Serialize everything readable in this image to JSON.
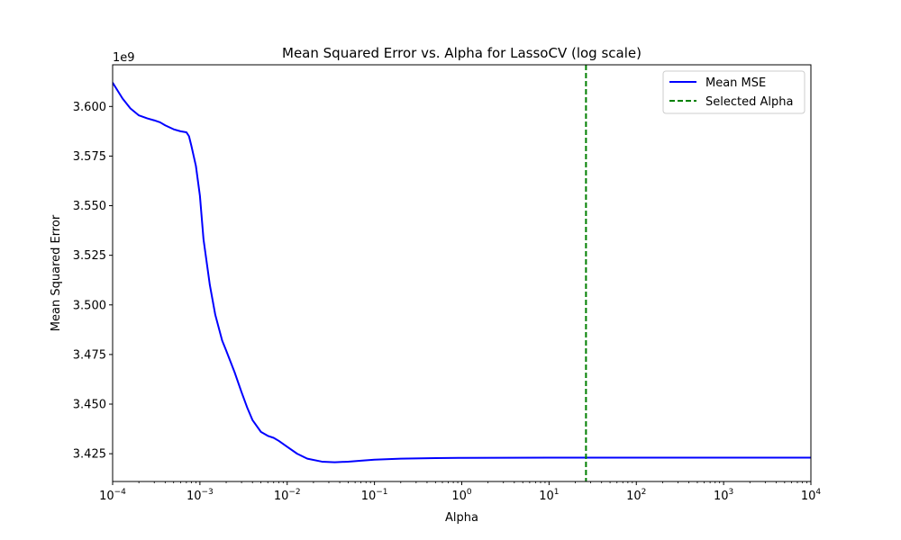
{
  "chart_data": {
    "type": "line",
    "title": "Mean Squared Error vs. Alpha for LassoCV (log scale)",
    "xlabel": "Alpha",
    "ylabel": "Mean Squared Error",
    "x_scale": "log",
    "xlim": [
      0.0001,
      10000
    ],
    "ylim": [
      3411000000,
      3621000000
    ],
    "y_offset_label": "1e9",
    "x_ticks": [
      {
        "value": 0.0001,
        "base": "10",
        "exp": "−4"
      },
      {
        "value": 0.001,
        "base": "10",
        "exp": "−3"
      },
      {
        "value": 0.01,
        "base": "10",
        "exp": "−2"
      },
      {
        "value": 0.1,
        "base": "10",
        "exp": "−1"
      },
      {
        "value": 1,
        "base": "10",
        "exp": "0"
      },
      {
        "value": 10,
        "base": "10",
        "exp": "1"
      },
      {
        "value": 100,
        "base": "10",
        "exp": "2"
      },
      {
        "value": 1000,
        "base": "10",
        "exp": "3"
      },
      {
        "value": 10000,
        "base": "10",
        "exp": "4"
      }
    ],
    "y_ticks": [
      {
        "value": 3425000000,
        "label": "3.425"
      },
      {
        "value": 3450000000,
        "label": "3.450"
      },
      {
        "value": 3475000000,
        "label": "3.475"
      },
      {
        "value": 3500000000,
        "label": "3.500"
      },
      {
        "value": 3525000000,
        "label": "3.525"
      },
      {
        "value": 3550000000,
        "label": "3.550"
      },
      {
        "value": 3575000000,
        "label": "3.575"
      },
      {
        "value": 3600000000,
        "label": "3.600"
      }
    ],
    "grid": false,
    "legend_position": "top-right",
    "series": [
      {
        "name": "Mean MSE",
        "color": "#0000ff",
        "style": "solid",
        "x": [
          0.0001,
          0.00013,
          0.00016,
          0.0002,
          0.00025,
          0.0003,
          0.00035,
          0.0004,
          0.0005,
          0.0006,
          0.0007,
          0.00075,
          0.0008,
          0.0009,
          0.001,
          0.0011,
          0.0013,
          0.0015,
          0.0018,
          0.002,
          0.0025,
          0.003,
          0.0035,
          0.004,
          0.005,
          0.006,
          0.007,
          0.008,
          0.01,
          0.013,
          0.017,
          0.025,
          0.035,
          0.05,
          0.07,
          0.1,
          0.2,
          0.5,
          1,
          10,
          100,
          1000,
          10000
        ],
        "y": [
          3612000000,
          3604000000,
          3599000000,
          3595500000,
          3594000000,
          3593000000,
          3592000000,
          3590500000,
          3588500000,
          3587500000,
          3587000000,
          3585000000,
          3580000000,
          3570000000,
          3555000000,
          3533000000,
          3510000000,
          3495000000,
          3482000000,
          3477000000,
          3466000000,
          3456000000,
          3448000000,
          3442000000,
          3436000000,
          3434000000,
          3433000000,
          3431500000,
          3428500000,
          3425000000,
          3422500000,
          3421000000,
          3420700000,
          3421000000,
          3421500000,
          3422000000,
          3422500000,
          3422800000,
          3422900000,
          3423000000,
          3423000000,
          3423000000,
          3423000000
        ]
      },
      {
        "name": "Selected Alpha",
        "color": "#008000",
        "style": "dashed",
        "vline_x": 26.5
      }
    ]
  }
}
